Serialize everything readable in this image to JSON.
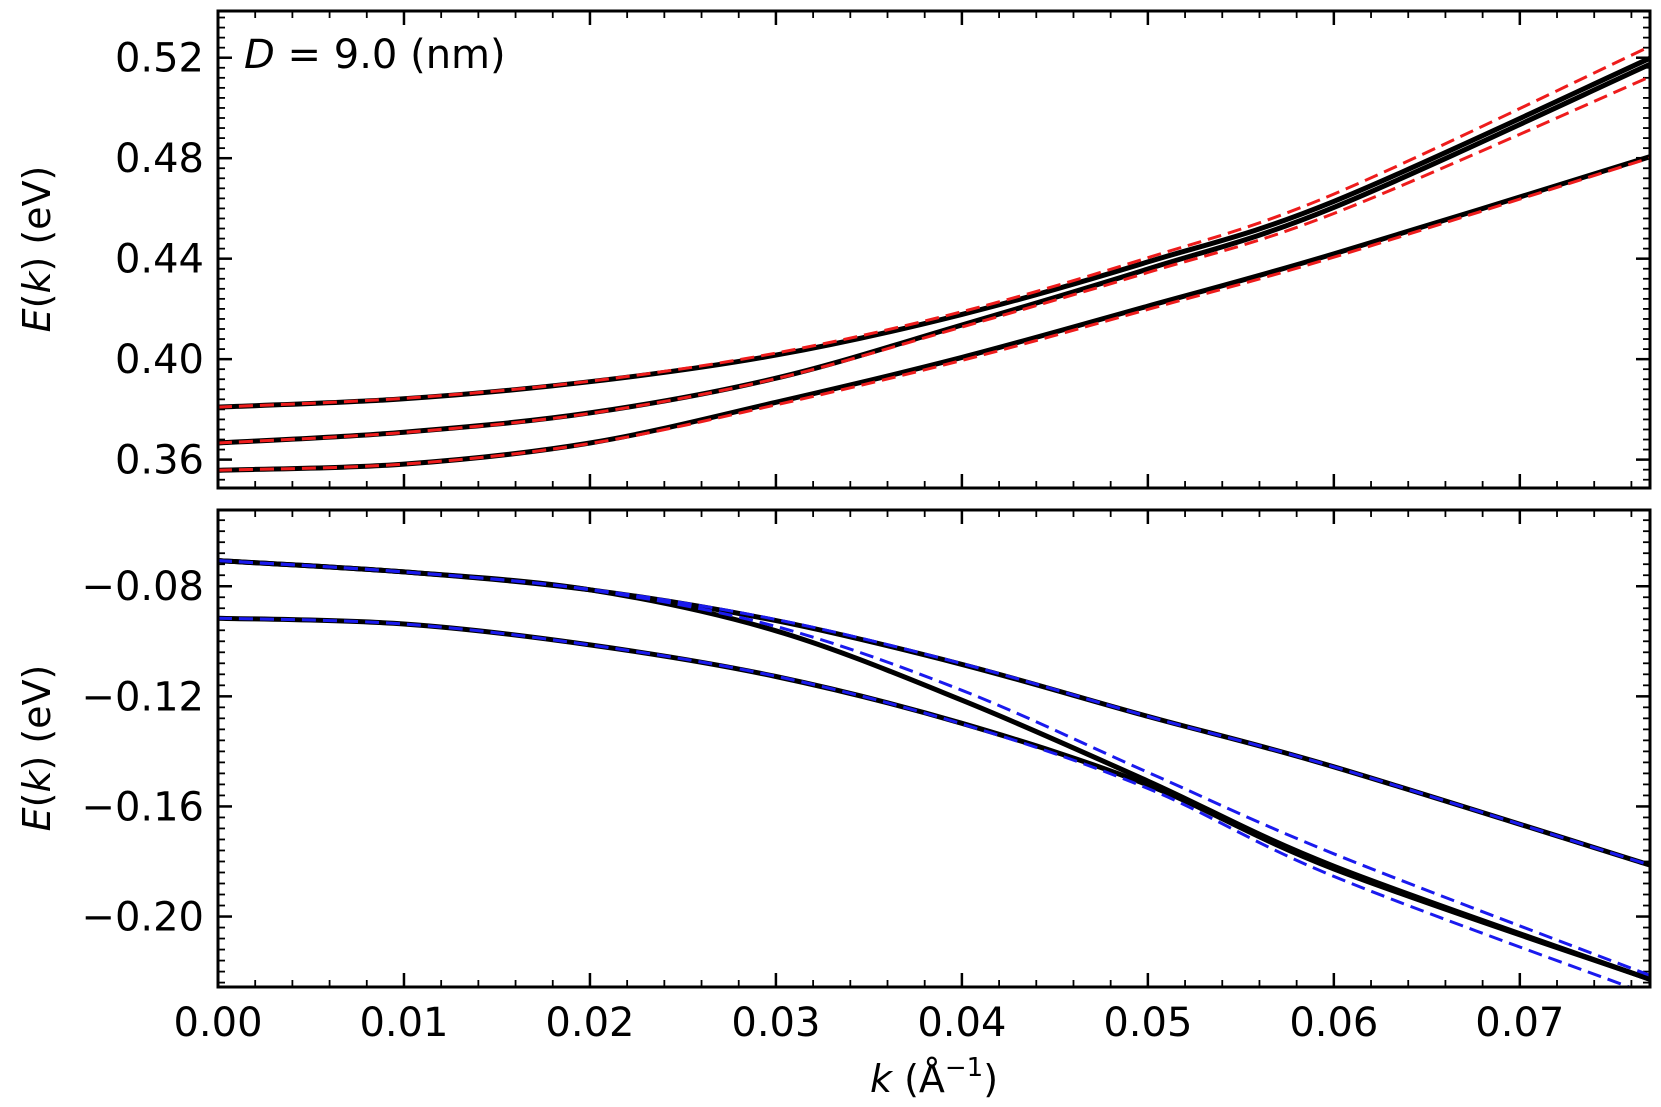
{
  "figure": {
    "annotation_var": "D",
    "annotation_rest": " = 9.0 (nm)"
  },
  "chart_data": [
    {
      "type": "line",
      "panel": "top",
      "xlabel_var": "k",
      "xlabel_unit": "(Å",
      "xlabel_exp": "−1",
      "xlabel_close": ")",
      "ylabel_var_prefix": "E",
      "ylabel_var": "k",
      "ylabel_unit": "(eV)",
      "xlim": [
        0.0,
        0.077
      ],
      "ylim": [
        0.3487,
        0.5386
      ],
      "xticks": [
        0.0,
        0.01,
        0.02,
        0.03,
        0.04,
        0.05,
        0.06,
        0.07
      ],
      "xtick_labels": [
        "0.00",
        "0.01",
        "0.02",
        "0.03",
        "0.04",
        "0.05",
        "0.06",
        "0.07"
      ],
      "yticks": [
        0.36,
        0.4,
        0.44,
        0.48,
        0.52
      ],
      "ytick_labels": [
        "0.36",
        "0.40",
        "0.44",
        "0.48",
        "0.52"
      ],
      "grid": false,
      "colors": {
        "solid": "#000000",
        "dashed": "#ee1c1c"
      },
      "x": [
        0.0,
        0.01,
        0.02,
        0.03,
        0.04,
        0.05,
        0.06,
        0.077
      ],
      "series": [
        {
          "style": "solid",
          "values": [
            0.3809,
            0.3842,
            0.391,
            0.4016,
            0.4178,
            0.4387,
            0.4628,
            0.5198
          ]
        },
        {
          "style": "solid",
          "values": [
            0.3666,
            0.3709,
            0.3786,
            0.3924,
            0.4136,
            0.4359,
            0.4604,
            0.5174
          ]
        },
        {
          "style": "solid",
          "values": [
            0.3558,
            0.3582,
            0.3666,
            0.3828,
            0.4007,
            0.4211,
            0.4419,
            0.4806
          ]
        },
        {
          "style": "dashed",
          "values": [
            0.3809,
            0.3844,
            0.3912,
            0.4024,
            0.4189,
            0.4404,
            0.4657,
            0.5245
          ]
        },
        {
          "style": "dashed",
          "values": [
            0.3666,
            0.3708,
            0.3784,
            0.3922,
            0.4128,
            0.4345,
            0.458,
            0.5124
          ]
        },
        {
          "style": "dashed",
          "values": [
            0.3558,
            0.3582,
            0.3664,
            0.3818,
            0.3995,
            0.4198,
            0.4406,
            0.4801
          ]
        }
      ]
    },
    {
      "type": "line",
      "panel": "bottom",
      "xlabel_var": "k",
      "xlabel_unit": "(Å",
      "xlabel_exp": "−1",
      "xlabel_close": ")",
      "ylabel_var_prefix": "E",
      "ylabel_var": "k",
      "ylabel_unit": "(eV)",
      "xlim": [
        0.0,
        0.077
      ],
      "ylim": [
        -0.2256,
        -0.0523
      ],
      "xticks": [
        0.0,
        0.01,
        0.02,
        0.03,
        0.04,
        0.05,
        0.06,
        0.07
      ],
      "xtick_labels": [
        "0.00",
        "0.01",
        "0.02",
        "0.03",
        "0.04",
        "0.05",
        "0.06",
        "0.07"
      ],
      "yticks": [
        -0.08,
        -0.12,
        -0.16,
        -0.2
      ],
      "ytick_labels": [
        "−0.08",
        "−0.12",
        "−0.16",
        "−0.20"
      ],
      "grid": false,
      "colors": {
        "solid": "#000000",
        "dashed": "#1a1aee"
      },
      "x": [
        0.0,
        0.01,
        0.02,
        0.03,
        0.04,
        0.05,
        0.06,
        0.077
      ],
      "series": [
        {
          "style": "solid",
          "values": [
            -0.0707,
            -0.0748,
            -0.0813,
            -0.0925,
            -0.1084,
            -0.1273,
            -0.1456,
            -0.1813
          ]
        },
        {
          "style": "solid",
          "values": [
            -0.0707,
            -0.0748,
            -0.0813,
            -0.0962,
            -0.1214,
            -0.1508,
            -0.1817,
            -0.2228
          ]
        },
        {
          "style": "solid",
          "values": [
            -0.0916,
            -0.0937,
            -0.1013,
            -0.1128,
            -0.1298,
            -0.1522,
            -0.1827,
            -0.2228
          ]
        },
        {
          "style": "dashed",
          "values": [
            -0.0707,
            -0.0748,
            -0.0811,
            -0.0921,
            -0.1081,
            -0.1273,
            -0.1456,
            -0.1813
          ]
        },
        {
          "style": "dashed",
          "values": [
            -0.0707,
            -0.0748,
            -0.0813,
            -0.0946,
            -0.1178,
            -0.1476,
            -0.1772,
            -0.2214
          ]
        },
        {
          "style": "dashed",
          "values": [
            -0.0916,
            -0.0937,
            -0.1013,
            -0.1127,
            -0.13,
            -0.1535,
            -0.1854,
            -0.2284
          ]
        }
      ]
    }
  ]
}
